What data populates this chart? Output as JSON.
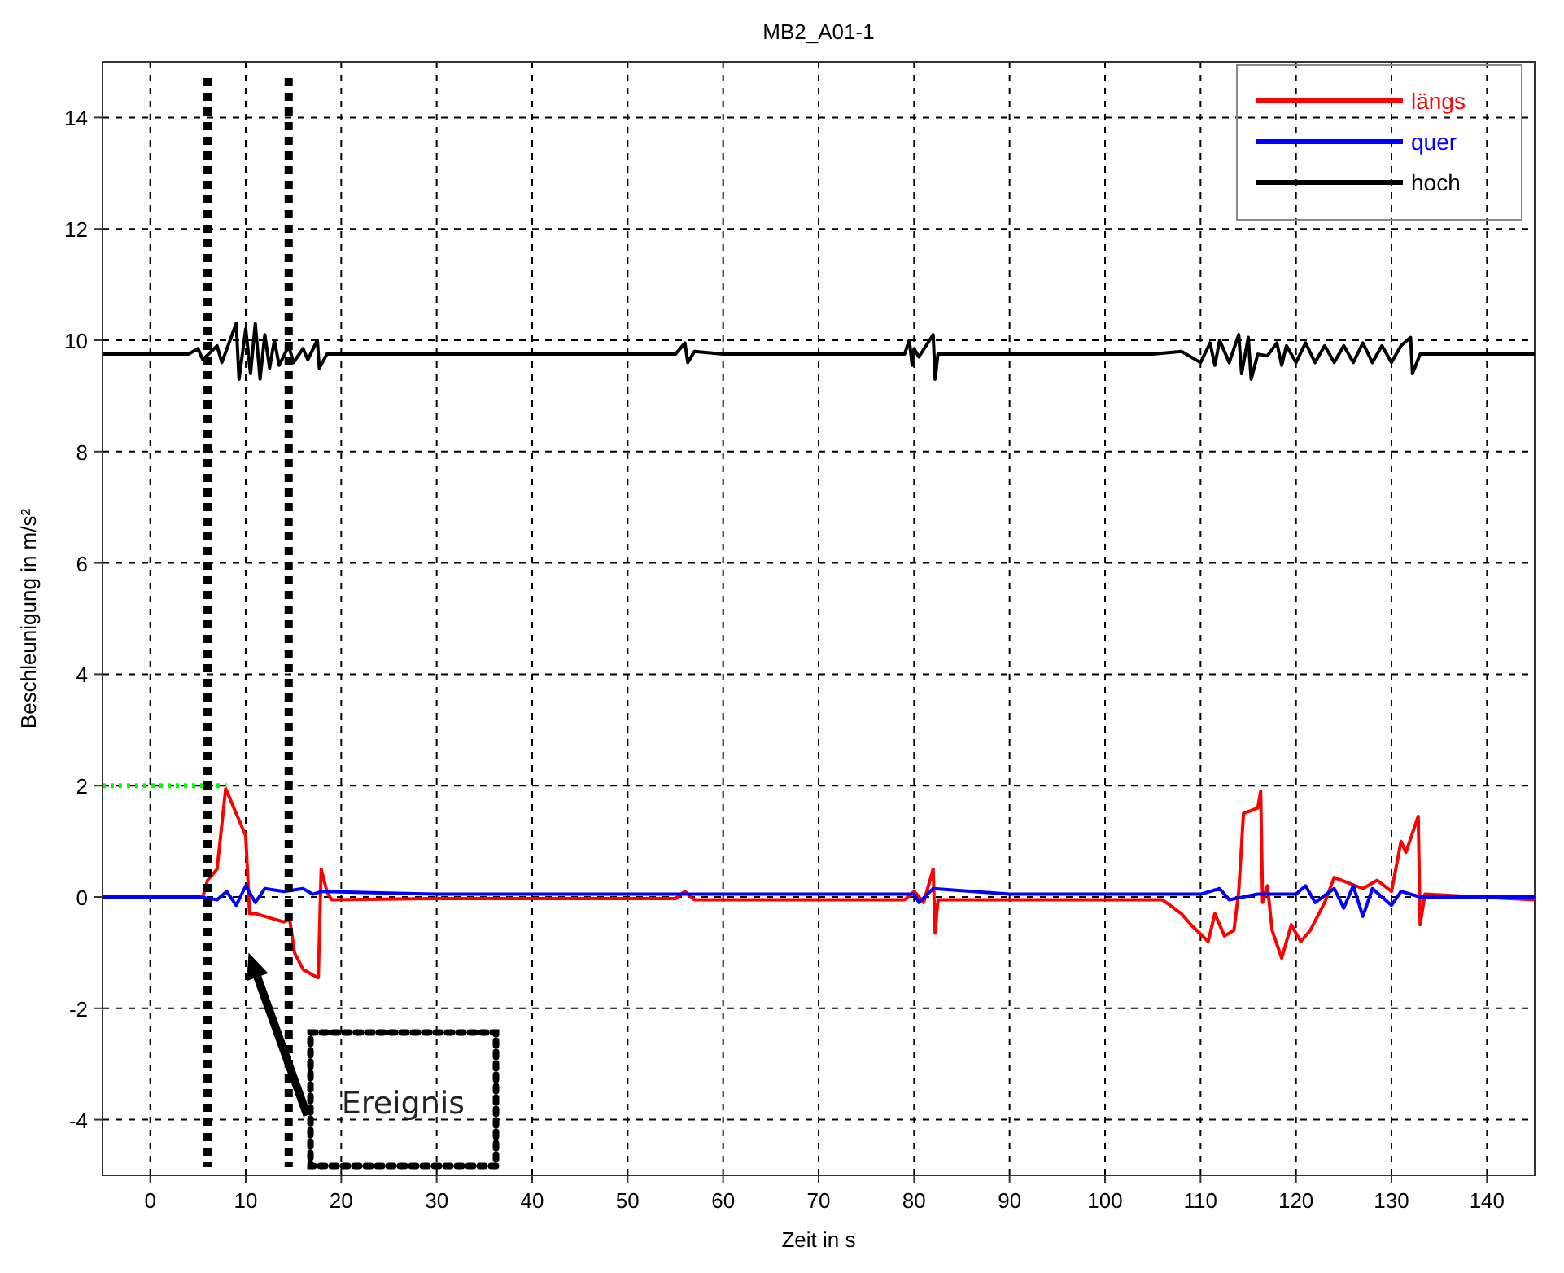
{
  "chart_data": {
    "type": "line",
    "title": "MB2_A01-1",
    "xlabel": "Zeit in s",
    "ylabel": "Beschleunigung in m/s²",
    "xlim": [
      -5,
      145
    ],
    "ylim": [
      -5,
      15
    ],
    "xticks": [
      0,
      10,
      20,
      30,
      40,
      50,
      60,
      70,
      80,
      90,
      100,
      110,
      120,
      130,
      140
    ],
    "yticks": [
      -4,
      -2,
      0,
      2,
      4,
      6,
      8,
      10,
      12,
      14
    ],
    "grid": true,
    "legend": "top right",
    "marker": "none",
    "line_style": "solid",
    "series": [
      {
        "name": "längs",
        "color": "#ff0000",
        "x": [
          -5,
          5.5,
          6,
          7,
          7.9,
          9,
          10,
          10.4,
          11,
          12,
          13,
          14,
          14.6,
          15.1,
          16,
          17,
          17.6,
          17.9,
          18.5,
          19,
          30,
          55,
          56,
          57,
          79,
          80,
          81,
          82,
          82.2,
          82.5,
          105,
          106,
          108,
          109,
          110.8,
          111.5,
          112.5,
          113.5,
          114,
          114.5,
          116,
          116.3,
          116.5,
          117,
          117.5,
          118.5,
          119.5,
          120.5,
          121.5,
          123,
          124,
          125.5,
          127,
          128.5,
          130,
          131,
          131.5,
          132.8,
          133,
          133.5,
          145
        ],
        "values": [
          0,
          0,
          0.3,
          0.5,
          1.95,
          1.5,
          1.1,
          -0.3,
          -0.3,
          -0.35,
          -0.4,
          -0.45,
          -0.4,
          -1,
          -1.3,
          -1.4,
          -1.45,
          0.5,
          0.1,
          -0.05,
          -0.03,
          -0.03,
          0.1,
          -0.05,
          -0.05,
          0.1,
          -0.1,
          0.5,
          -0.65,
          -0.05,
          -0.05,
          -0.05,
          -0.3,
          -0.5,
          -0.8,
          -0.3,
          -0.7,
          -0.6,
          0.1,
          1.5,
          1.6,
          1.9,
          -0.1,
          0.2,
          -0.6,
          -1.1,
          -0.5,
          -0.8,
          -0.6,
          -0.1,
          0.35,
          0.25,
          0.15,
          0.3,
          0.1,
          1,
          0.8,
          1.45,
          -0.5,
          0.05,
          -0.05
        ]
      },
      {
        "name": "quer",
        "color": "#0000ff",
        "x": [
          -5,
          5,
          7,
          8,
          9,
          10,
          11,
          12,
          14,
          16,
          17,
          18,
          30,
          50,
          80,
          80.5,
          82,
          90,
          105,
          110,
          112,
          113,
          116,
          120,
          121,
          122,
          124,
          125,
          126,
          127,
          128,
          130,
          131,
          133,
          145
        ],
        "values": [
          0,
          0,
          -0.05,
          0.1,
          -0.15,
          0.2,
          -0.1,
          0.15,
          0.1,
          0.15,
          0.05,
          0.1,
          0.05,
          0.05,
          0.05,
          -0.1,
          0.15,
          0.05,
          0.05,
          0.05,
          0.15,
          -0.05,
          0.05,
          0.05,
          0.2,
          -0.1,
          0.15,
          -0.2,
          0.2,
          -0.35,
          0.15,
          -0.15,
          0.1,
          0,
          0
        ]
      },
      {
        "name": "hoch",
        "color": "#000000",
        "x": [
          -5,
          4,
          5,
          5.5,
          7,
          7.5,
          9,
          9.3,
          10,
          10.5,
          11,
          11.5,
          12,
          12.5,
          13,
          13.5,
          14.5,
          15,
          16,
          16.5,
          17.5,
          17.7,
          18.5,
          30,
          55,
          56,
          56.3,
          57,
          60,
          79,
          79.5,
          79.8,
          80,
          80.5,
          82,
          82.2,
          82.5,
          105,
          108,
          110,
          111,
          111.5,
          112,
          113,
          114,
          114.3,
          115,
          115.3,
          116,
          117,
          118,
          118.5,
          119,
          120,
          121,
          122,
          123,
          124,
          125,
          126,
          127,
          128,
          129,
          130,
          131,
          132,
          132.2,
          133,
          145
        ],
        "values": [
          9.75,
          9.75,
          9.85,
          9.65,
          9.9,
          9.6,
          10.3,
          9.3,
          10.2,
          9.4,
          10.3,
          9.3,
          10.1,
          9.5,
          10,
          9.55,
          9.9,
          9.6,
          9.85,
          9.65,
          10,
          9.5,
          9.75,
          9.75,
          9.75,
          9.95,
          9.6,
          9.8,
          9.75,
          9.75,
          10,
          9.55,
          9.85,
          9.7,
          10.1,
          9.3,
          9.75,
          9.75,
          9.8,
          9.6,
          9.95,
          9.55,
          10,
          9.6,
          10.1,
          9.4,
          10.05,
          9.3,
          9.75,
          9.72,
          9.95,
          9.55,
          9.9,
          9.6,
          9.95,
          9.6,
          9.9,
          9.6,
          9.9,
          9.6,
          9.95,
          9.6,
          9.9,
          9.6,
          9.9,
          10.05,
          9.4,
          9.75,
          9.75
        ]
      },
      {
        "color": "#00ff00",
        "line_style": "dotted",
        "x": [
          -5,
          8
        ],
        "values": [
          2,
          2
        ]
      }
    ],
    "ref_lines": [
      {
        "axis": "x",
        "value": 6,
        "color": "#000000",
        "line_style": "dotted"
      },
      {
        "axis": "x",
        "value": 14.5,
        "color": "#000000",
        "line_style": "dotted"
      }
    ],
    "annotations": [
      "Ereignis"
    ]
  }
}
